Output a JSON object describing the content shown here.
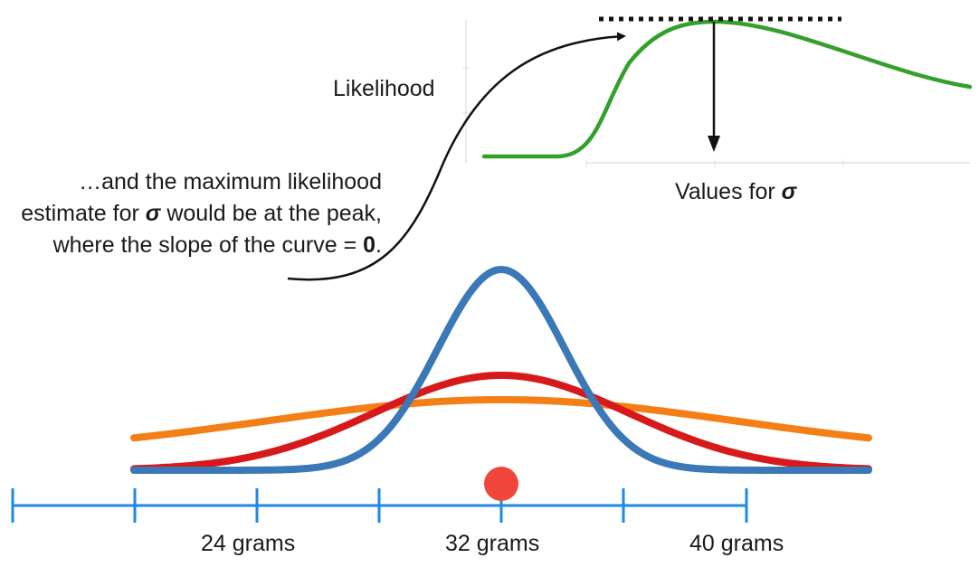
{
  "likelihood_plot": {
    "y_label": "Likelihood",
    "x_label_prefix": "Values for ",
    "x_label_symbol": "σ",
    "curve_color": "#33a02c"
  },
  "annotation": {
    "part1": "…and the maximum likelihood estimate for ",
    "symbol": "σ",
    "part2": " would be at the peak, where the slope of the curve = ",
    "value": "0",
    "end": "."
  },
  "distribution_plot": {
    "tick_labels": [
      "24 grams",
      "32 grams",
      "40 grams"
    ],
    "observed_point_grams": 32,
    "axis_color": "#1e88e5",
    "point_color": "#f0463c",
    "curves": [
      {
        "color": "#3a78b8",
        "sd": "narrow"
      },
      {
        "color": "#d7191c",
        "sd": "medium"
      },
      {
        "color": "#f57f17",
        "sd": "wide"
      }
    ]
  }
}
